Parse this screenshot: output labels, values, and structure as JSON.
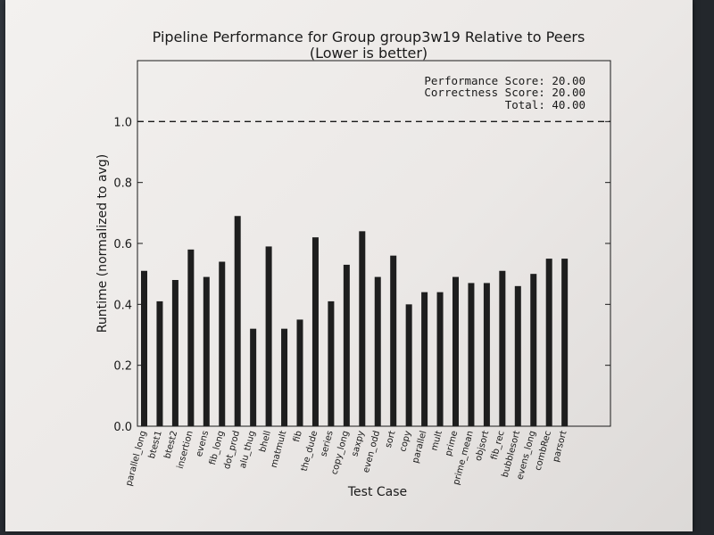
{
  "chart_data": {
    "type": "bar",
    "title": "Pipeline Performance for Group group3w19 Relative to Peers",
    "subtitle": "(Lower is better)",
    "xlabel": "Test Case",
    "ylabel": "Runtime (normalized to avg)",
    "ylim": [
      0,
      1.2
    ],
    "yticks": [
      "0.0",
      "0.2",
      "0.4",
      "0.6",
      "0.8",
      "1.0"
    ],
    "ytick_values": [
      0,
      0.2,
      0.4,
      0.6,
      0.8,
      1.0
    ],
    "reference_line": 1.0,
    "categories": [
      "parallel_long",
      "btest1",
      "btest2",
      "insertion",
      "evens",
      "fib_long",
      "dot_prod",
      "alu_thug",
      "bhell",
      "matmult",
      "fib",
      "the_dude",
      "series",
      "copy_long",
      "saxpy",
      "even_odd",
      "sort",
      "copy",
      "parallel",
      "mult",
      "prime",
      "prime_mean",
      "objsort",
      "fib_rec",
      "bubblesort",
      "evens_long",
      "combRec",
      "parsort"
    ],
    "values": [
      0.51,
      0.41,
      0.48,
      0.58,
      0.49,
      0.54,
      0.69,
      0.32,
      0.59,
      0.32,
      0.35,
      0.62,
      0.41,
      0.53,
      0.64,
      0.49,
      0.56,
      0.4,
      0.44,
      0.44,
      0.49,
      0.47,
      0.47,
      0.51,
      0.46,
      0.5,
      0.55,
      0.55
    ],
    "annotations": [
      "Performance Score: 20.00",
      "Correctness Score: 20.00",
      "Total: 40.00"
    ],
    "bar_color": "#1e1e1e"
  }
}
